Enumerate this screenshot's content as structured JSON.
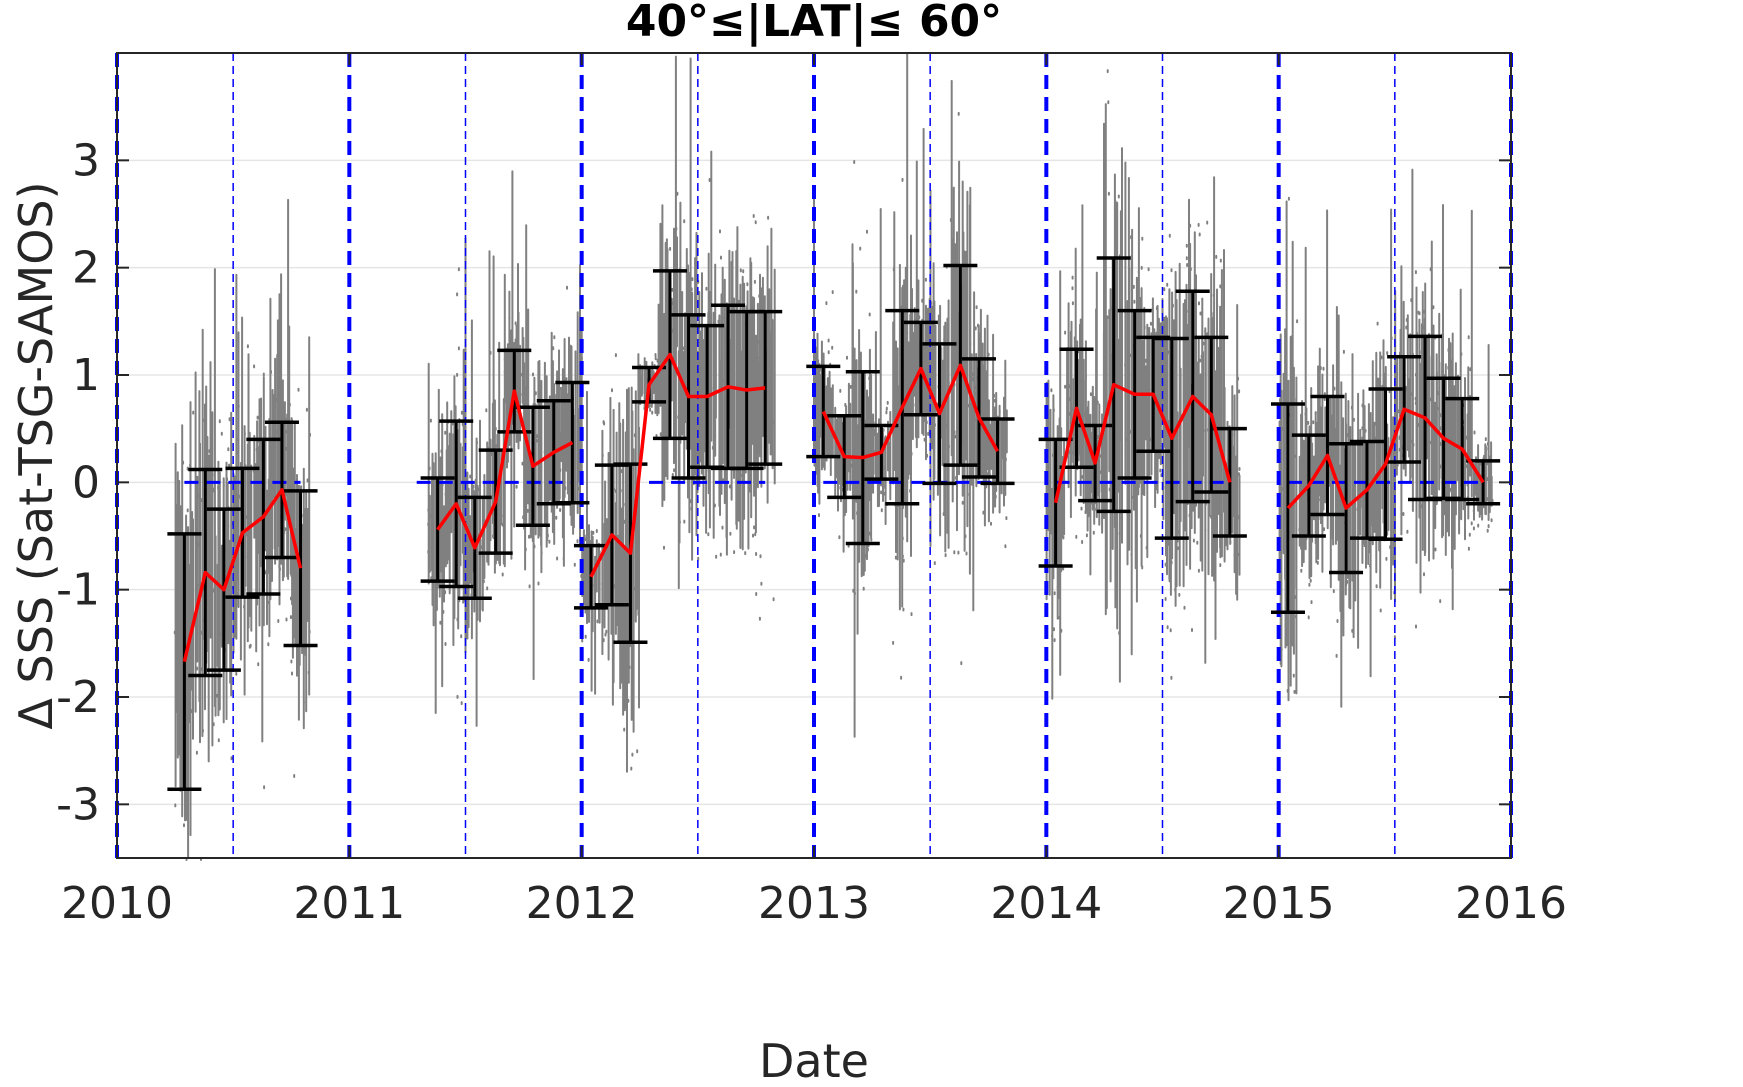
{
  "chart_data": {
    "type": "scatter",
    "title": "40°≤|LAT|≤ 60°",
    "xlabel": "Date",
    "ylabel": "Δ SSS (Sat-TSG-SAMOS)",
    "xlim": [
      2010,
      2016
    ],
    "ylim": [
      -3.5,
      4.0
    ],
    "x_ticks": [
      "2010",
      "2011",
      "2012",
      "2013",
      "2014",
      "2015",
      "2016"
    ],
    "y_ticks": [
      -3,
      -2,
      -1,
      0,
      1,
      2,
      3
    ],
    "y_tick_labels": [
      "-3",
      "-2",
      "-1",
      "0",
      "1",
      "2",
      "3"
    ],
    "grid": true,
    "colors": {
      "scatter": "#808080",
      "mean_line": "#ff0000",
      "error_bars": "#000000",
      "year_lines": "#0000ff",
      "zero_line": "#0000ff",
      "grid": "#e5e5e5"
    },
    "year_lines": [
      2010,
      2011,
      2012,
      2013,
      2014,
      2015,
      2016
    ],
    "midyear_lines": [
      2010.5,
      2011.5,
      2012.5,
      2013.5,
      2014.5,
      2015.5
    ],
    "zero_line_segments": [
      [
        2010.29,
        2010.79
      ],
      [
        2011.29,
        2011.96
      ],
      [
        2012.29,
        2012.79
      ],
      [
        2013.04,
        2013.79
      ],
      [
        2014.04,
        2014.79
      ],
      [
        2015.04,
        2015.88
      ]
    ],
    "series": [
      {
        "kind": "monthly_mean_with_std",
        "segments": [
          {
            "x": [
              2010.29,
              2010.38,
              2010.46,
              2010.54,
              2010.63,
              2010.71,
              2010.79
            ],
            "mean": [
              -1.67,
              -0.84,
              -1.0,
              -0.47,
              -0.32,
              -0.07,
              -0.8
            ],
            "std": [
              1.19,
              0.96,
              0.75,
              0.6,
              0.72,
              0.63,
              0.72
            ]
          },
          {
            "x": [
              2011.38,
              2011.46,
              2011.54,
              2011.63,
              2011.71,
              2011.79,
              2011.88,
              2011.96
            ],
            "mean": [
              -0.44,
              -0.2,
              -0.61,
              -0.18,
              0.85,
              0.15,
              0.28,
              0.37
            ],
            "std": [
              0.48,
              0.77,
              0.47,
              0.48,
              0.38,
              0.55,
              0.48,
              0.56
            ]
          },
          {
            "x": [
              2012.04,
              2012.13,
              2012.21,
              2012.29,
              2012.38,
              2012.46,
              2012.54,
              2012.63,
              2012.71,
              2012.79
            ],
            "mean": [
              -0.88,
              -0.49,
              -0.66,
              0.91,
              1.19,
              0.8,
              0.8,
              0.89,
              0.86,
              0.88
            ],
            "std": [
              0.29,
              0.65,
              0.83,
              0.16,
              0.78,
              0.76,
              0.66,
              0.76,
              0.73,
              0.71
            ]
          },
          {
            "x": [
              2013.04,
              2013.13,
              2013.21,
              2013.29,
              2013.38,
              2013.46,
              2013.54,
              2013.63,
              2013.71,
              2013.79
            ],
            "mean": [
              0.66,
              0.24,
              0.23,
              0.28,
              0.7,
              1.06,
              0.64,
              1.09,
              0.6,
              0.29
            ],
            "std": [
              0.42,
              0.38,
              0.8,
              0.25,
              0.9,
              0.43,
              0.65,
              0.93,
              0.55,
              0.3
            ]
          },
          {
            "x": [
              2014.04,
              2014.13,
              2014.21,
              2014.29,
              2014.38,
              2014.46,
              2014.54,
              2014.63,
              2014.71,
              2014.79
            ],
            "mean": [
              -0.19,
              0.69,
              0.18,
              0.91,
              0.82,
              0.82,
              0.41,
              0.8,
              0.63,
              0.0
            ],
            "std": [
              0.59,
              0.55,
              0.35,
              1.18,
              0.78,
              0.53,
              0.93,
              0.98,
              0.72,
              0.5
            ]
          },
          {
            "x": [
              2015.04,
              2015.13,
              2015.21,
              2015.29,
              2015.38,
              2015.46,
              2015.54,
              2015.63,
              2015.71,
              2015.79,
              2015.88
            ],
            "mean": [
              -0.24,
              -0.03,
              0.25,
              -0.24,
              -0.07,
              0.17,
              0.68,
              0.6,
              0.41,
              0.31,
              0.0
            ],
            "std": [
              0.97,
              0.47,
              0.55,
              0.6,
              0.45,
              0.7,
              0.49,
              0.76,
              0.56,
              0.47,
              0.2
            ]
          }
        ]
      },
      {
        "kind": "scatter_cloud",
        "color": "#808080"
      }
    ]
  }
}
